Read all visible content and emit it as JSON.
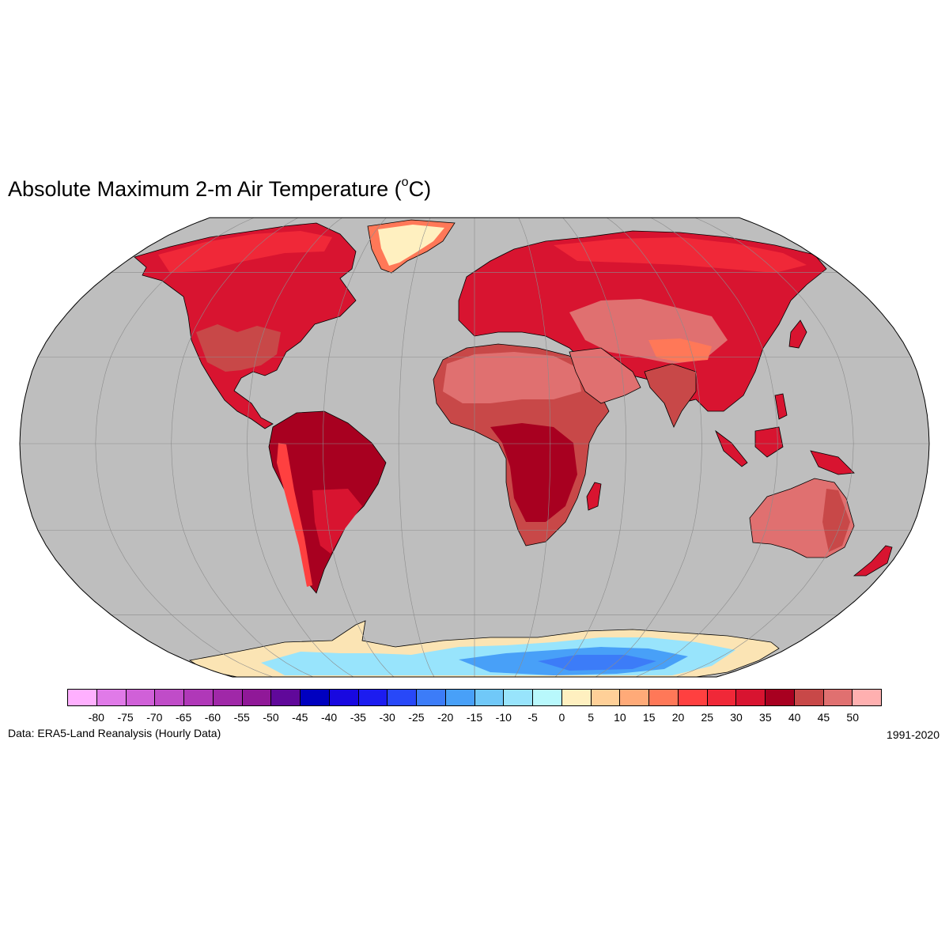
{
  "title": {
    "prefix": "Absolute Maximum 2-m Air Temperature (",
    "degree": "o",
    "unit_suffix": "C)"
  },
  "source": "Data: ERA5-Land Reanalysis (Hourly Data)",
  "period": "1991-2020",
  "map": {
    "projection": "robinson",
    "ocean_color": "#bebebe",
    "graticule_color": "#8c8c8c",
    "coastline_color": "#000000"
  },
  "legend": {
    "colors": [
      "#ffb0ff",
      "#e07ae8",
      "#d060d8",
      "#c04cc8",
      "#b038b8",
      "#a028a8",
      "#901898",
      "#60089a",
      "#0000c0",
      "#1808e0",
      "#1c1cf0",
      "#2848f8",
      "#3c7cf8",
      "#48a0f8",
      "#70c8f8",
      "#98e4fc",
      "#b8f8fc",
      "#fff0c0",
      "#ffd098",
      "#ffaa78",
      "#ff7858",
      "#ff4040",
      "#f02838",
      "#d81430",
      "#a80020",
      "#c84848",
      "#e07070",
      "#ffb0b0"
    ],
    "ticks": [
      "-80",
      "-75",
      "-70",
      "-65",
      "-60",
      "-55",
      "-50",
      "-45",
      "-40",
      "-35",
      "-30",
      "-25",
      "-20",
      "-15",
      "-10",
      "-5",
      "0",
      "5",
      "10",
      "15",
      "20",
      "25",
      "30",
      "35",
      "40",
      "45",
      "50"
    ]
  }
}
